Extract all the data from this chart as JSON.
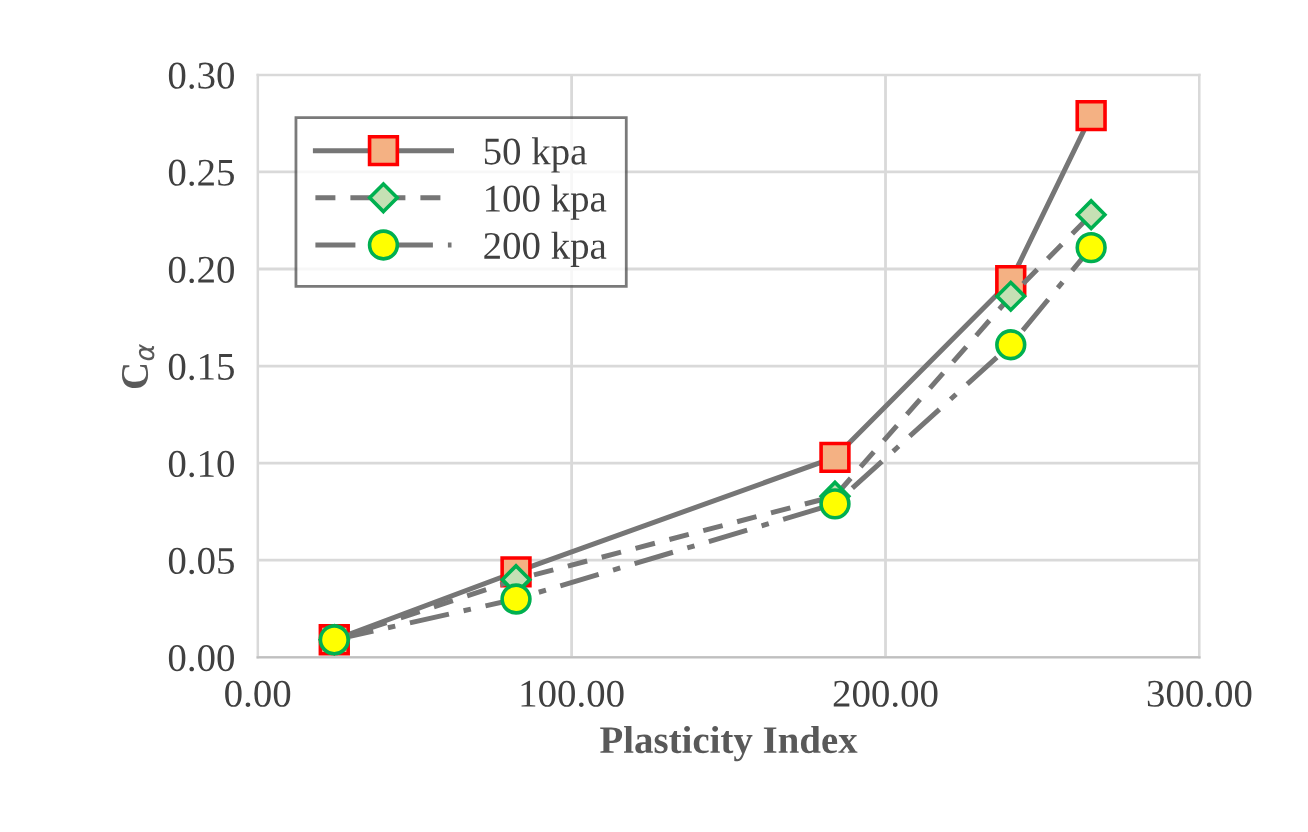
{
  "chart_data": {
    "type": "line",
    "xlabel": "Plasticity Index",
    "ylabel": "C$_{α}$",
    "xlim": [
      0,
      300
    ],
    "xticks": [
      {
        "value": 0,
        "label": "0.00"
      },
      {
        "value": 100,
        "label": "100.00"
      },
      {
        "value": 200,
        "label": "200.00"
      },
      {
        "value": 300,
        "label": "300.00"
      }
    ],
    "ylim": [
      0,
      0.3
    ],
    "yticks": [
      {
        "value": 0,
        "label": "0.00"
      },
      {
        "value": 0.05,
        "label": "0.05"
      },
      {
        "value": 0.1,
        "label": "0.10"
      },
      {
        "value": 0.15,
        "label": "0.15"
      },
      {
        "value": 0.2,
        "label": "0.20"
      },
      {
        "value": 0.25,
        "label": "0.25"
      },
      {
        "value": 0.3,
        "label": "0.30"
      }
    ],
    "grid": true,
    "legend": "top left",
    "x": [
      24.4,
      82.3,
      183.9,
      239.9,
      265.5
    ],
    "series": [
      {
        "name": "50 kpa",
        "color": "#f4b183",
        "marker": "square",
        "line_style": "solid",
        "values": [
          0.009,
          0.044,
          0.103,
          0.194,
          0.279
        ]
      },
      {
        "name": "100 kpa",
        "color": "#c5e0b4",
        "marker": "diamond",
        "line_style": "dashed",
        "values": [
          0.009,
          0.04,
          0.083,
          0.186,
          0.228
        ]
      },
      {
        "name": "200 kpa",
        "color": "#ffff00",
        "marker": "circle",
        "line_style": "dashdot",
        "values": [
          0.009,
          0.03,
          0.079,
          0.161,
          0.211
        ]
      }
    ]
  }
}
